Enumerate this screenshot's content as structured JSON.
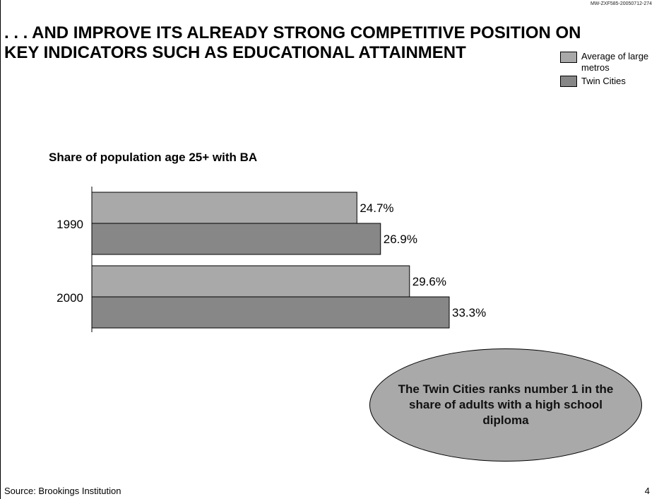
{
  "doc_id": "MW-ZXF585-20050712-274",
  "title_lines": [
    ". . . AND IMPROVE ITS ALREADY STRONG COMPETITIVE POSITION ON",
    "KEY INDICATORS SUCH AS EDUCATIONAL ATTAINMENT"
  ],
  "legend": {
    "average_label": "Average of large metros",
    "twin_label": "Twin Cities"
  },
  "colors": {
    "average": "#a9a9a9",
    "twin_cities": "#878787"
  },
  "chart_data": {
    "type": "bar",
    "orientation": "horizontal",
    "title": "Share of population age 25+ with BA",
    "categories": [
      "1990",
      "2000"
    ],
    "series": [
      {
        "name": "Average of large metros",
        "values": [
          24.7,
          29.6
        ],
        "labels": [
          "24.7%",
          "29.6%"
        ]
      },
      {
        "name": "Twin Cities",
        "values": [
          26.9,
          33.3
        ],
        "labels": [
          "26.9%",
          "33.3%"
        ]
      }
    ],
    "xlim": [
      0,
      33.3
    ],
    "grid": false,
    "legend_position": "top-right"
  },
  "callout": "The Twin Cities ranks number 1 in the share of adults with a high school diploma",
  "source": "Source: Brookings Institution",
  "page_number": "4"
}
